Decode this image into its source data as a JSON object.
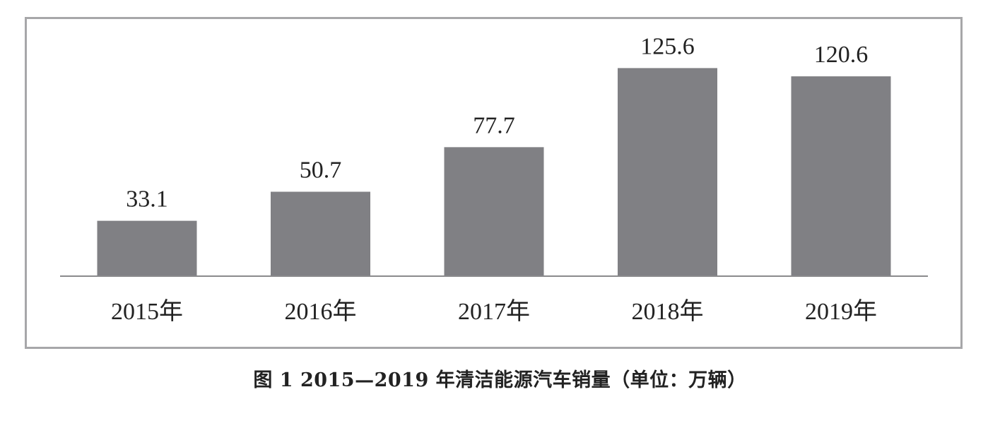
{
  "caption": "图 1  2015—2019 年清洁能源汽车销量（单位：万辆）",
  "chart_data": {
    "type": "bar",
    "categories": [
      "2015年",
      "2016年",
      "2017年",
      "2018年",
      "2019年"
    ],
    "values": [
      33.1,
      50.7,
      77.7,
      125.6,
      120.6
    ],
    "value_labels": [
      "33.1",
      "50.7",
      "77.7",
      "125.6",
      "120.6"
    ],
    "title": "",
    "xlabel": "",
    "ylabel": "",
    "ylim": [
      0,
      154
    ],
    "grid": false,
    "legend": "none",
    "bar_color": "#808084",
    "axis_color": "#8a8a8c",
    "frame_color": "#a7a7a9"
  }
}
